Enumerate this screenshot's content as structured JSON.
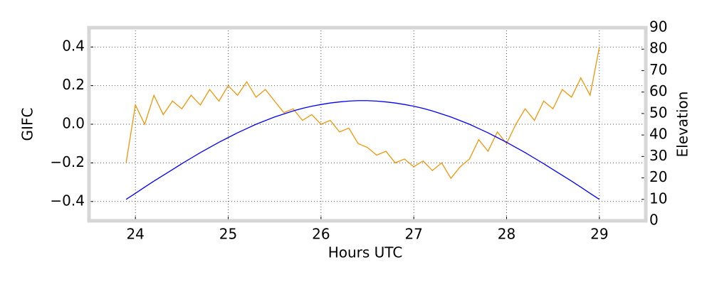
{
  "chart_data": {
    "type": "line",
    "xlabel": "Hours UTC",
    "ylabel": "GIFC",
    "y2label": "Elevation",
    "x": [
      23.9,
      24.0,
      24.1,
      24.2,
      24.3,
      24.4,
      24.5,
      24.6,
      24.7,
      24.8,
      24.9,
      25.0,
      25.1,
      25.2,
      25.3,
      25.4,
      25.5,
      25.6,
      25.7,
      25.8,
      25.9,
      26.0,
      26.1,
      26.2,
      26.3,
      26.4,
      26.5,
      26.6,
      26.7,
      26.8,
      26.9,
      27.0,
      27.1,
      27.2,
      27.3,
      27.4,
      27.5,
      27.6,
      27.7,
      27.8,
      27.9,
      28.0,
      28.1,
      28.2,
      28.3,
      28.4,
      28.5,
      28.6,
      28.7,
      28.8,
      28.9,
      29.0
    ],
    "series": [
      {
        "color": "#f0960a",
        "values": [
          -0.2,
          0.1,
          0.0,
          0.15,
          0.05,
          0.12,
          0.08,
          0.15,
          0.1,
          0.18,
          0.12,
          0.2,
          0.15,
          0.22,
          0.14,
          0.18,
          0.12,
          0.06,
          0.08,
          0.02,
          0.05,
          0.0,
          0.02,
          -0.04,
          -0.02,
          -0.1,
          -0.12,
          -0.16,
          -0.14,
          -0.2,
          -0.18,
          -0.22,
          -0.19,
          -0.24,
          -0.2,
          -0.28,
          -0.22,
          -0.18,
          -0.08,
          -0.14,
          -0.04,
          -0.1,
          0.0,
          0.08,
          0.02,
          0.12,
          0.08,
          0.18,
          0.14,
          0.24,
          0.15,
          0.4
        ]
      },
      {
        "color": "#0000ff",
        "axis": "y2",
        "values": [
          10.0,
          12.8,
          15.7,
          18.5,
          21.2,
          23.9,
          26.6,
          29.2,
          31.8,
          34.2,
          36.6,
          38.8,
          41.0,
          43.0,
          45.0,
          46.7,
          48.4,
          49.8,
          51.2,
          52.4,
          53.4,
          54.2,
          54.9,
          55.4,
          55.8,
          56.0,
          56.0,
          55.8,
          55.4,
          54.9,
          54.2,
          53.4,
          52.4,
          51.2,
          49.8,
          48.4,
          46.7,
          45.0,
          43.0,
          41.0,
          38.8,
          36.6,
          34.2,
          31.8,
          29.2,
          26.6,
          23.9,
          21.2,
          18.5,
          15.7,
          12.8,
          10.0
        ]
      }
    ],
    "xlim": [
      23.5,
      29.5
    ],
    "xticks": [
      24,
      25,
      26,
      27,
      28,
      29
    ],
    "ylim": [
      -0.5,
      0.5
    ],
    "yticks": [
      {
        "value": -0.4,
        "label": "−0.4"
      },
      {
        "value": -0.2,
        "label": "−0.2"
      },
      {
        "value": 0,
        "label": "0.0"
      },
      0.2,
      0.4
    ],
    "y2lim": [
      0,
      90
    ],
    "y2ticks": [
      0,
      10,
      20,
      30,
      40,
      50,
      60,
      70,
      80,
      90
    ],
    "grid": true
  }
}
